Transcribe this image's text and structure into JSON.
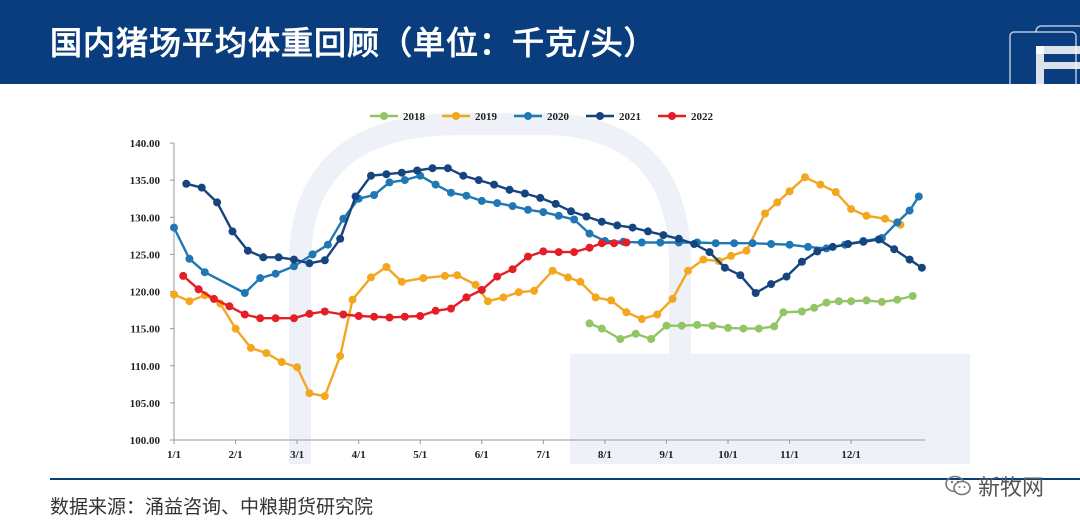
{
  "header": {
    "title": "国内猪场平均体重回顾（单位：千克/头）"
  },
  "footer": {
    "source": "数据来源：涌益咨询、中粮期货研究院",
    "watermark": "新牧网"
  },
  "colors": {
    "header_bg": "#0a3d7e",
    "s2018": "#92c564",
    "s2019": "#f2a71f",
    "s2020": "#1f77b4",
    "s2021": "#16447e",
    "s2022": "#e41e26"
  },
  "chart_data": {
    "type": "line",
    "x_tick_labels": [
      "1/1",
      "2/1",
      "3/1",
      "4/1",
      "5/1",
      "6/1",
      "7/1",
      "8/1",
      "9/1",
      "10/1",
      "11/1",
      "12/1"
    ],
    "ylim": [
      100,
      140
    ],
    "y_tick_labels": [
      "140.00",
      "135.00",
      "130.00",
      "125.00",
      "120.00",
      "115.00",
      "110.00",
      "105.00",
      "100.00"
    ],
    "legend_position": "top-center",
    "grid": false,
    "series": [
      {
        "name": "2018",
        "color": "#92c564",
        "x": [
          7.75,
          7.95,
          8.25,
          8.5,
          8.75,
          9.0,
          9.25,
          9.5,
          9.75,
          10.0,
          10.25,
          10.5,
          10.75,
          10.9,
          11.2,
          11.4,
          11.6,
          11.8,
          12.0,
          12.25,
          12.5,
          12.75,
          13.0
        ],
        "y": [
          115.7,
          115.0,
          113.6,
          114.3,
          113.6,
          115.4,
          115.4,
          115.5,
          115.4,
          115.1,
          115.0,
          115.0,
          115.3,
          117.2,
          117.3,
          117.8,
          118.5,
          118.7,
          118.7,
          118.8,
          118.6,
          118.9,
          119.4
        ]
      },
      {
        "name": "2019",
        "color": "#f2a71f",
        "x": [
          1.0,
          1.25,
          1.5,
          1.75,
          2.0,
          2.25,
          2.5,
          2.75,
          3.0,
          3.2,
          3.45,
          3.7,
          3.9,
          4.2,
          4.45,
          4.7,
          5.05,
          5.4,
          5.6,
          5.9,
          6.1,
          6.35,
          6.6,
          6.85,
          7.15,
          7.4,
          7.6,
          7.85,
          8.1,
          8.35,
          8.6,
          8.85,
          9.1,
          9.35,
          9.6,
          9.85,
          10.05,
          10.3,
          10.6,
          10.8,
          11.0,
          11.25,
          11.5,
          11.75,
          12.0,
          12.25,
          12.55,
          12.8
        ],
        "y": [
          119.6,
          118.7,
          119.5,
          118.4,
          115.0,
          112.4,
          111.7,
          110.5,
          109.8,
          106.3,
          105.9,
          111.3,
          118.9,
          121.9,
          123.3,
          121.3,
          121.8,
          122.1,
          122.2,
          120.9,
          118.7,
          119.2,
          119.9,
          120.1,
          122.8,
          121.9,
          121.3,
          119.2,
          118.8,
          117.2,
          116.3,
          116.9,
          119.0,
          122.8,
          124.3,
          124.1,
          124.8,
          125.5,
          130.5,
          132.0,
          133.5,
          135.4,
          134.4,
          133.4,
          131.1,
          130.2,
          129.8,
          129.0
        ]
      },
      {
        "name": "2020",
        "color": "#1f77b4",
        "x": [
          1.0,
          1.25,
          1.5,
          2.15,
          2.4,
          2.65,
          2.95,
          3.25,
          3.5,
          3.75,
          4.0,
          4.25,
          4.5,
          4.75,
          5.0,
          5.25,
          5.5,
          5.75,
          6.0,
          6.25,
          6.5,
          6.75,
          7.0,
          7.25,
          7.5,
          7.75,
          8.0,
          8.3,
          8.6,
          8.9,
          9.2,
          9.5,
          9.8,
          10.1,
          10.4,
          10.7,
          11.0,
          11.3,
          11.6,
          11.9,
          12.2,
          12.5,
          12.75,
          12.95,
          13.1
        ],
        "y": [
          128.6,
          124.4,
          122.6,
          119.8,
          121.8,
          122.4,
          123.4,
          125.0,
          126.3,
          129.8,
          132.5,
          133.0,
          134.7,
          135.0,
          135.6,
          134.4,
          133.3,
          132.9,
          132.2,
          131.9,
          131.5,
          131.0,
          130.7,
          130.2,
          129.7,
          127.8,
          126.8,
          126.7,
          126.6,
          126.6,
          126.6,
          126.6,
          126.5,
          126.5,
          126.5,
          126.4,
          126.3,
          126.0,
          125.8,
          126.3,
          126.8,
          127.2,
          129.3,
          130.9,
          132.8
        ]
      },
      {
        "name": "2021",
        "color": "#16447e",
        "x": [
          1.2,
          1.45,
          1.7,
          1.95,
          2.2,
          2.45,
          2.7,
          2.95,
          3.2,
          3.45,
          3.7,
          3.95,
          4.2,
          4.45,
          4.7,
          4.95,
          5.2,
          5.45,
          5.7,
          5.95,
          6.2,
          6.45,
          6.7,
          6.95,
          7.2,
          7.45,
          7.7,
          7.95,
          8.2,
          8.45,
          8.7,
          8.95,
          9.2,
          9.45,
          9.7,
          9.95,
          10.2,
          10.45,
          10.7,
          10.95,
          11.2,
          11.45,
          11.7,
          11.95,
          12.2,
          12.45,
          12.7,
          12.95,
          13.15
        ],
        "y": [
          134.5,
          134.0,
          132.0,
          128.1,
          125.5,
          124.6,
          124.6,
          124.3,
          123.8,
          124.2,
          127.1,
          132.8,
          135.6,
          135.8,
          136.0,
          136.3,
          136.6,
          136.6,
          135.6,
          135.0,
          134.4,
          133.7,
          133.2,
          132.6,
          131.8,
          130.8,
          130.1,
          129.4,
          128.9,
          128.6,
          128.1,
          127.6,
          127.1,
          126.4,
          125.3,
          123.2,
          122.2,
          119.8,
          121.0,
          122.0,
          124.0,
          125.4,
          126.0,
          126.4,
          126.7,
          127.0,
          125.7,
          124.3,
          123.2
        ]
      },
      {
        "name": "2022",
        "color": "#e41e26",
        "x": [
          1.15,
          1.4,
          1.65,
          1.9,
          2.15,
          2.4,
          2.65,
          2.95,
          3.2,
          3.45,
          3.75,
          4.0,
          4.25,
          4.5,
          4.75,
          5.0,
          5.25,
          5.5,
          5.75,
          6.0,
          6.25,
          6.5,
          6.75,
          7.0,
          7.25,
          7.5,
          7.75,
          7.95,
          8.15,
          8.35
        ],
        "y": [
          122.1,
          120.3,
          119.0,
          118.0,
          116.9,
          116.4,
          116.4,
          116.4,
          117.0,
          117.3,
          116.9,
          116.7,
          116.6,
          116.5,
          116.6,
          116.7,
          117.4,
          117.7,
          119.2,
          120.2,
          122.0,
          123.0,
          124.7,
          125.4,
          125.3,
          125.3,
          125.9,
          126.5,
          126.5,
          126.6
        ]
      }
    ]
  }
}
